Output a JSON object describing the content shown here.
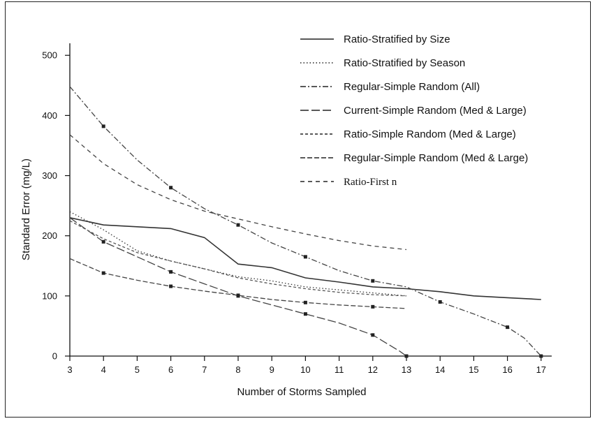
{
  "chart_data": {
    "type": "line",
    "title": "",
    "xlabel": "Number of Storms Sampled",
    "ylabel": "Standard Error (mg/L)",
    "xlim": [
      3,
      17.5
    ],
    "ylim": [
      0,
      520
    ],
    "x_ticks": [
      "3",
      "4",
      "5",
      "6",
      "7",
      "8",
      "9",
      "10",
      "11",
      "12",
      "13",
      "14",
      "15",
      "16",
      "17"
    ],
    "y_ticks": [
      "0",
      "100",
      "200",
      "300",
      "400",
      "500"
    ],
    "grid": false,
    "legend_position": "top-right",
    "series": [
      {
        "name": "Ratio-Stratified by Size",
        "color": "#333333",
        "dash": "solid",
        "points": [
          [
            3,
            230
          ],
          [
            4,
            218
          ],
          [
            5,
            215
          ],
          [
            6,
            212
          ],
          [
            7,
            197
          ],
          [
            8,
            153
          ],
          [
            9,
            147
          ],
          [
            10,
            130
          ],
          [
            11,
            123
          ],
          [
            12,
            115
          ],
          [
            13,
            112
          ],
          [
            14,
            107
          ],
          [
            15,
            100
          ],
          [
            16,
            97
          ],
          [
            17,
            94
          ]
        ]
      },
      {
        "name": "Ratio-Stratified by Season",
        "color": "#333333",
        "dash": "dotted",
        "points": [
          [
            3,
            240
          ],
          [
            4,
            210
          ],
          [
            5,
            175
          ],
          [
            6,
            158
          ],
          [
            7,
            145
          ],
          [
            8,
            132
          ],
          [
            9,
            125
          ],
          [
            10,
            115
          ],
          [
            11,
            110
          ],
          [
            12,
            105
          ],
          [
            13,
            100
          ]
        ]
      },
      {
        "name": "Regular-Simple Random (All)",
        "color": "#444444",
        "dash": "dash-dot",
        "points": [
          [
            3,
            448
          ],
          [
            4,
            382
          ],
          [
            5,
            326
          ],
          [
            6,
            280
          ],
          [
            7,
            245
          ],
          [
            8,
            218
          ],
          [
            9,
            188
          ],
          [
            10,
            165
          ],
          [
            11,
            142
          ],
          [
            12,
            125
          ],
          [
            13,
            115
          ],
          [
            14,
            90
          ],
          [
            15,
            70
          ],
          [
            16,
            48
          ],
          [
            16.5,
            30
          ],
          [
            17,
            0
          ]
        ]
      },
      {
        "name": "Current-Simple Random (Med & Large)",
        "color": "#444444",
        "dash": "long-dash",
        "points": [
          [
            3,
            230
          ],
          [
            4,
            190
          ],
          [
            5,
            165
          ],
          [
            6,
            140
          ],
          [
            7,
            120
          ],
          [
            8,
            100
          ],
          [
            9,
            85
          ],
          [
            10,
            70
          ],
          [
            11,
            55
          ],
          [
            12,
            35
          ],
          [
            12.8,
            8
          ],
          [
            13,
            0
          ]
        ]
      },
      {
        "name": "Ratio-Simple Random (Med & Large)",
        "color": "#555555",
        "dash": "short-dash",
        "points": [
          [
            3,
            225
          ],
          [
            4,
            195
          ],
          [
            5,
            172
          ],
          [
            6,
            158
          ],
          [
            7,
            145
          ],
          [
            8,
            130
          ],
          [
            9,
            120
          ],
          [
            10,
            112
          ],
          [
            11,
            106
          ],
          [
            12,
            102
          ],
          [
            13,
            100
          ]
        ]
      },
      {
        "name": "Regular-Simple Random (Med & Large)",
        "color": "#444444",
        "dash": "dash",
        "points": [
          [
            3,
            162
          ],
          [
            4,
            138
          ],
          [
            5,
            126
          ],
          [
            6,
            116
          ],
          [
            7,
            108
          ],
          [
            8,
            101
          ],
          [
            9,
            94
          ],
          [
            10,
            89
          ],
          [
            11,
            85
          ],
          [
            12,
            82
          ],
          [
            13,
            79
          ]
        ]
      },
      {
        "name": "Ratio-First n",
        "color": "#444444",
        "dash": "dash-sparse",
        "points": [
          [
            3,
            368
          ],
          [
            4,
            320
          ],
          [
            5,
            285
          ],
          [
            6,
            260
          ],
          [
            7,
            241
          ],
          [
            8,
            228
          ],
          [
            9,
            215
          ],
          [
            10,
            203
          ],
          [
            11,
            192
          ],
          [
            12,
            183
          ],
          [
            13,
            177
          ]
        ]
      }
    ]
  }
}
